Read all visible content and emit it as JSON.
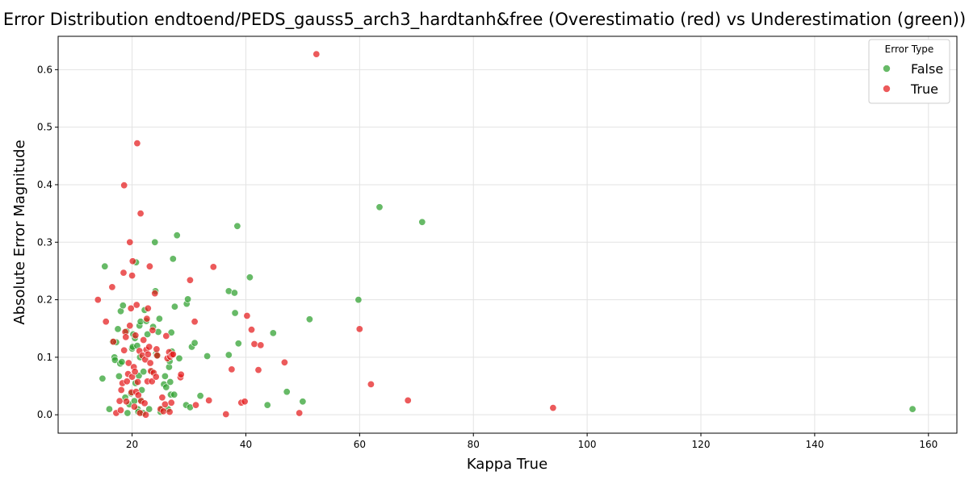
{
  "chart_data": {
    "type": "scatter",
    "title": "Error Distribution endtoend/PEDS_gauss5_arch3_hardtanh&free (Overestimatio (red) vs Underestimation (green))",
    "xlabel": "Kappa True",
    "ylabel": "Absolute Error Magnitude",
    "xlim": [
      7,
      165
    ],
    "ylim": [
      -0.032,
      0.658
    ],
    "xticks": [
      "20",
      "40",
      "60",
      "80",
      "100",
      "120",
      "140",
      "160"
    ],
    "yticks": [
      "0.0",
      "0.1",
      "0.2",
      "0.3",
      "0.4",
      "0.5",
      "0.6"
    ],
    "grid": true,
    "legend": {
      "title": "Error Type",
      "position": "top-right"
    },
    "series": [
      {
        "name": "False",
        "color": "#2ca02c",
        "points": [
          [
            14.8,
            0.063
          ],
          [
            15.2,
            0.258
          ],
          [
            16.0,
            0.01
          ],
          [
            16.6,
            0.127
          ],
          [
            16.9,
            0.1
          ],
          [
            17.0,
            0.095
          ],
          [
            17.2,
            0.126
          ],
          [
            17.5,
            0.149
          ],
          [
            17.7,
            0.067
          ],
          [
            17.9,
            0.089
          ],
          [
            18.0,
            0.18
          ],
          [
            18.2,
            0.092
          ],
          [
            18.4,
            0.19
          ],
          [
            18.8,
            0.03
          ],
          [
            19.0,
            0.145
          ],
          [
            19.2,
            0.003
          ],
          [
            19.5,
            0.018
          ],
          [
            19.8,
            0.037
          ],
          [
            20.0,
            0.115
          ],
          [
            20.1,
            0.118
          ],
          [
            20.2,
            0.14
          ],
          [
            20.4,
            0.024
          ],
          [
            20.5,
            0.133
          ],
          [
            20.6,
            0.055
          ],
          [
            20.7,
            0.265
          ],
          [
            20.9,
            0.12
          ],
          [
            21.0,
            0.01
          ],
          [
            21.1,
            0.005
          ],
          [
            21.2,
            0.068
          ],
          [
            21.3,
            0.155
          ],
          [
            21.4,
            0.1
          ],
          [
            21.5,
            0.162
          ],
          [
            21.6,
            0.025
          ],
          [
            21.7,
            0.043
          ],
          [
            21.9,
            0.003
          ],
          [
            22.0,
            0.075
          ],
          [
            22.2,
            0.182
          ],
          [
            22.5,
            0.163
          ],
          [
            22.7,
            0.14
          ],
          [
            23.0,
            0.01
          ],
          [
            23.5,
            0.075
          ],
          [
            23.7,
            0.153
          ],
          [
            24.0,
            0.3
          ],
          [
            24.1,
            0.215
          ],
          [
            24.2,
            0.106
          ],
          [
            24.3,
            0.103
          ],
          [
            24.5,
            0.103
          ],
          [
            24.6,
            0.144
          ],
          [
            24.8,
            0.167
          ],
          [
            25.0,
            0.005
          ],
          [
            25.2,
            0.01
          ],
          [
            25.6,
            0.053
          ],
          [
            25.8,
            0.067
          ],
          [
            26.0,
            0.048
          ],
          [
            26.3,
            0.01
          ],
          [
            26.5,
            0.083
          ],
          [
            26.6,
            0.093
          ],
          [
            26.7,
            0.057
          ],
          [
            26.8,
            0.035
          ],
          [
            26.9,
            0.143
          ],
          [
            27.0,
            0.11
          ],
          [
            27.2,
            0.271
          ],
          [
            27.4,
            0.035
          ],
          [
            27.5,
            0.188
          ],
          [
            27.9,
            0.312
          ],
          [
            28.3,
            0.098
          ],
          [
            29.5,
            0.017
          ],
          [
            29.6,
            0.193
          ],
          [
            29.8,
            0.201
          ],
          [
            30.2,
            0.013
          ],
          [
            30.5,
            0.118
          ],
          [
            31.0,
            0.125
          ],
          [
            32.0,
            0.033
          ],
          [
            33.2,
            0.102
          ],
          [
            37.0,
            0.215
          ],
          [
            37.0,
            0.104
          ],
          [
            38.0,
            0.212
          ],
          [
            38.1,
            0.177
          ],
          [
            38.5,
            0.328
          ],
          [
            38.7,
            0.124
          ],
          [
            40.7,
            0.239
          ],
          [
            43.8,
            0.017
          ],
          [
            44.8,
            0.142
          ],
          [
            47.2,
            0.04
          ],
          [
            50.0,
            0.023
          ],
          [
            51.2,
            0.166
          ],
          [
            59.8,
            0.2
          ],
          [
            63.5,
            0.361
          ],
          [
            71.0,
            0.335
          ],
          [
            157.2,
            0.01
          ]
        ]
      },
      {
        "name": "True",
        "color": "#e41a1c",
        "points": [
          [
            14.0,
            0.2
          ],
          [
            15.4,
            0.162
          ],
          [
            16.5,
            0.222
          ],
          [
            16.7,
            0.127
          ],
          [
            17.2,
            0.003
          ],
          [
            17.8,
            0.024
          ],
          [
            18.0,
            0.008
          ],
          [
            18.1,
            0.043
          ],
          [
            18.3,
            0.055
          ],
          [
            18.5,
            0.247
          ],
          [
            18.6,
            0.112
          ],
          [
            18.6,
            0.399
          ],
          [
            18.8,
            0.144
          ],
          [
            18.9,
            0.135
          ],
          [
            19.0,
            0.023
          ],
          [
            19.1,
            0.058
          ],
          [
            19.3,
            0.071
          ],
          [
            19.4,
            0.09
          ],
          [
            19.6,
            0.3
          ],
          [
            19.6,
            0.155
          ],
          [
            19.8,
            0.185
          ],
          [
            19.9,
            0.039
          ],
          [
            20.0,
            0.242
          ],
          [
            20.0,
            0.066
          ],
          [
            20.1,
            0.267
          ],
          [
            20.3,
            0.083
          ],
          [
            20.4,
            0.014
          ],
          [
            20.5,
            0.075
          ],
          [
            20.6,
            0.138
          ],
          [
            20.7,
            0.04
          ],
          [
            20.8,
            0.191
          ],
          [
            20.9,
            0.472
          ],
          [
            21.0,
            0.057
          ],
          [
            21.1,
            0.034
          ],
          [
            21.3,
            0.111
          ],
          [
            21.4,
            0.003
          ],
          [
            21.5,
            0.35
          ],
          [
            21.6,
            0.024
          ],
          [
            21.8,
            0.103
          ],
          [
            22.0,
            0.13
          ],
          [
            22.2,
            0.02
          ],
          [
            22.3,
            0.096
          ],
          [
            22.4,
            0.0
          ],
          [
            22.5,
            0.113
          ],
          [
            22.6,
            0.167
          ],
          [
            22.7,
            0.058
          ],
          [
            22.8,
            0.185
          ],
          [
            22.8,
            0.105
          ],
          [
            23.0,
            0.118
          ],
          [
            23.1,
            0.258
          ],
          [
            23.2,
            0.09
          ],
          [
            23.3,
            0.076
          ],
          [
            23.5,
            0.058
          ],
          [
            23.6,
            0.147
          ],
          [
            23.8,
            0.073
          ],
          [
            24.0,
            0.211
          ],
          [
            24.2,
            0.066
          ],
          [
            24.3,
            0.114
          ],
          [
            24.4,
            0.103
          ],
          [
            25.0,
            0.01
          ],
          [
            25.3,
            0.03
          ],
          [
            25.5,
            0.006
          ],
          [
            25.8,
            0.018
          ],
          [
            26.0,
            0.137
          ],
          [
            26.2,
            0.098
          ],
          [
            26.5,
            0.109
          ],
          [
            26.6,
            0.005
          ],
          [
            26.7,
            0.101
          ],
          [
            26.9,
            0.021
          ],
          [
            27.0,
            0.104
          ],
          [
            27.2,
            0.105
          ],
          [
            28.5,
            0.065
          ],
          [
            28.6,
            0.07
          ],
          [
            30.2,
            0.234
          ],
          [
            31.0,
            0.162
          ],
          [
            31.2,
            0.017
          ],
          [
            33.5,
            0.025
          ],
          [
            34.3,
            0.257
          ],
          [
            36.5,
            0.001
          ],
          [
            37.5,
            0.079
          ],
          [
            39.2,
            0.021
          ],
          [
            39.8,
            0.023
          ],
          [
            40.2,
            0.172
          ],
          [
            41.0,
            0.148
          ],
          [
            41.5,
            0.123
          ],
          [
            42.2,
            0.078
          ],
          [
            42.6,
            0.121
          ],
          [
            46.8,
            0.091
          ],
          [
            49.4,
            0.003
          ],
          [
            52.4,
            0.627
          ],
          [
            60.0,
            0.149
          ],
          [
            62.0,
            0.053
          ],
          [
            68.5,
            0.025
          ],
          [
            94.0,
            0.012
          ]
        ]
      }
    ]
  }
}
